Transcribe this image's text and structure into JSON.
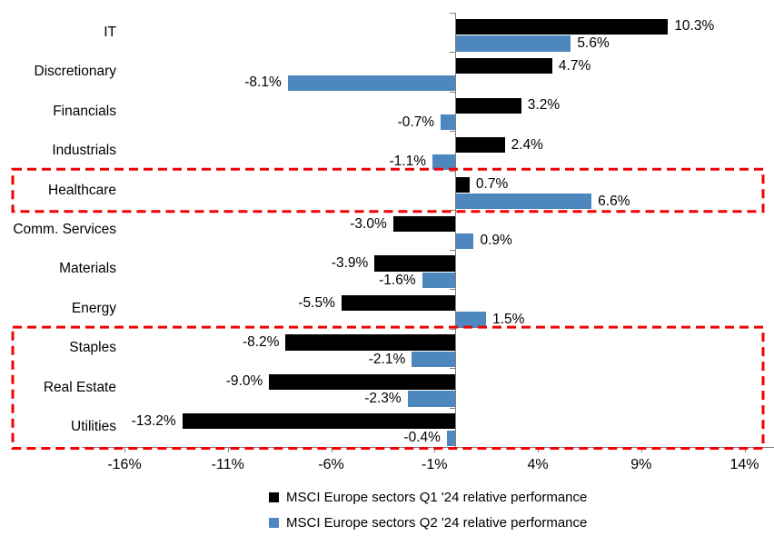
{
  "chart_data": {
    "type": "bar",
    "orientation": "horizontal",
    "title": "",
    "categories": [
      "IT",
      "Discretionary",
      "Financials",
      "Industrials",
      "Healthcare",
      "Comm. Services",
      "Materials",
      "Energy",
      "Staples",
      "Real Estate",
      "Utilities"
    ],
    "series": [
      {
        "name": "MSCI Europe sectors Q1 '24 relative performance",
        "color": "#000000",
        "values": [
          10.3,
          4.7,
          3.2,
          2.4,
          0.7,
          -3.0,
          -3.9,
          -5.5,
          -8.2,
          -9.0,
          -13.2
        ],
        "labels": [
          "10.3%",
          "4.7%",
          "3.2%",
          "2.4%",
          "0.7%",
          "-3.0%",
          "-3.9%",
          "-5.5%",
          "-8.2%",
          "-9.0%",
          "-13.2%"
        ]
      },
      {
        "name": "MSCI Europe sectors Q2 '24 relative performance",
        "color": "#4e86be",
        "values": [
          5.6,
          -8.1,
          -0.7,
          -1.1,
          6.6,
          0.9,
          -1.6,
          1.5,
          -2.1,
          -2.3,
          -0.4
        ],
        "labels": [
          "5.6%",
          "-8.1%",
          "-0.7%",
          "-1.1%",
          "6.6%",
          "0.9%",
          "-1.6%",
          "1.5%",
          "-2.1%",
          "-2.3%",
          "-0.4%"
        ]
      }
    ],
    "x_axis": {
      "ticks": [
        -16,
        -11,
        -6,
        -1,
        4,
        9,
        14
      ],
      "tick_labels": [
        "-16%",
        "-11%",
        "-6%",
        "-1%",
        "4%",
        "9%",
        "14%"
      ],
      "xlim": [
        -18.1,
        15.4
      ],
      "grid": false
    },
    "legend": {
      "position": "bottom",
      "items": [
        {
          "label": "MSCI Europe sectors Q1 '24 relative performance",
          "color": "#000000"
        },
        {
          "label": "MSCI Europe sectors Q2 '24 relative performance",
          "color": "#4e86be"
        }
      ]
    },
    "highlight_boxes": [
      {
        "categories": [
          "Healthcare"
        ]
      },
      {
        "categories": [
          "Staples",
          "Real Estate",
          "Utilities"
        ]
      }
    ],
    "highlight_color": "#f40000"
  }
}
